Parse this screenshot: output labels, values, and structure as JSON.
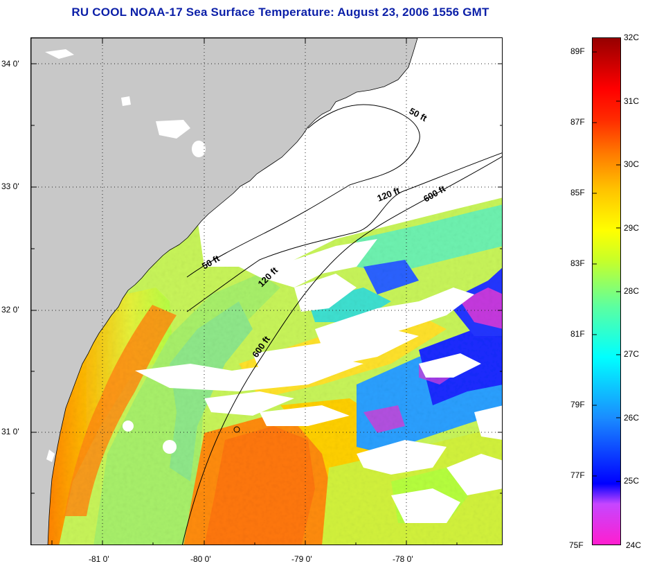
{
  "title": "RU COOL  NOAA-17  Sea Surface Temperature:  August 23, 2006 1556 GMT",
  "map": {
    "lat_labels": [
      "34 0'",
      "33 0'",
      "32 0'",
      "31 0'"
    ],
    "lon_labels": [
      "-81 0'",
      "-80 0'",
      "-79 0'",
      "-78 0'"
    ],
    "isobath_labels": [
      "50 ft",
      "120 ft",
      "600 ft",
      "50 ft",
      "120 ft",
      "600 ft"
    ],
    "colors": {
      "land": "#c8c8c8",
      "cloud": "#ffffff"
    }
  },
  "colorbar": {
    "celsius": [
      "32C",
      "31C",
      "30C",
      "29C",
      "28C",
      "27C",
      "26C",
      "25C",
      "24C"
    ],
    "fahrenheit": [
      "89F",
      "87F",
      "85F",
      "83F",
      "81F",
      "79F",
      "77F",
      "75F"
    ],
    "stops": [
      "#ff1ecf",
      "#c646ff",
      "#0000ff",
      "#1a8cff",
      "#00ffff",
      "#5cffa0",
      "#c6ff2a",
      "#ffff00",
      "#ffc400",
      "#ff7c00",
      "#ff2a00",
      "#ff0000",
      "#960000"
    ]
  }
}
